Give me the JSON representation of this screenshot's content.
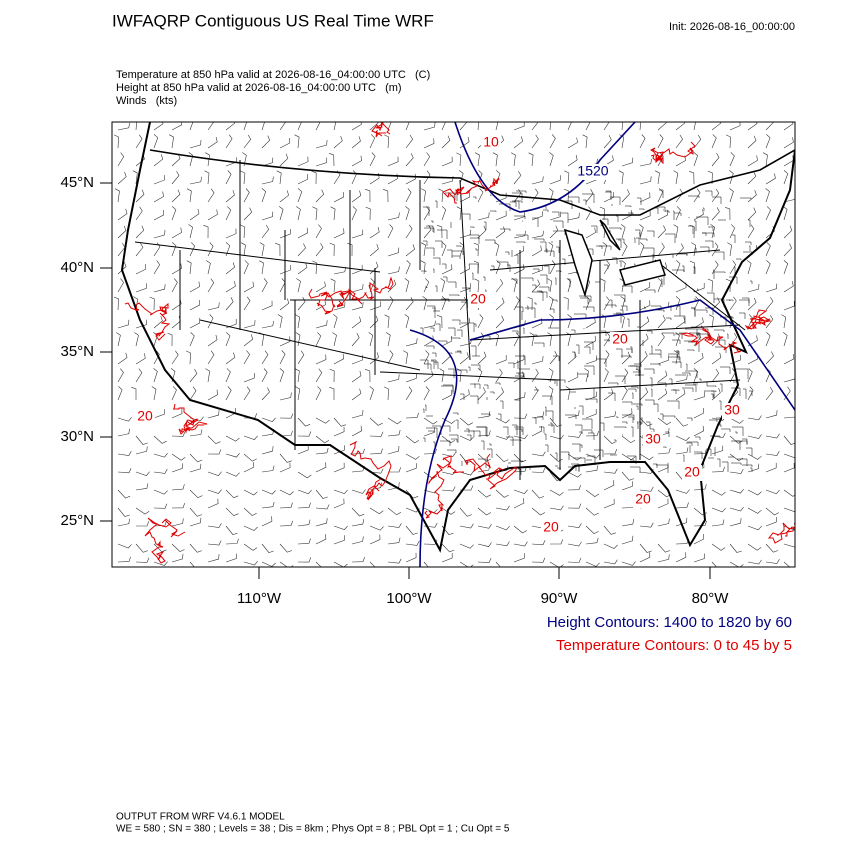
{
  "header": {
    "title": "IWFAQRP Contiguous US Real Time WRF",
    "init": "Init: 2026-08-16_00:00:00"
  },
  "fields": [
    "Temperature at 850 hPa valid at 2026-08-16_04:00:00 UTC   (C)",
    "Height at 850 hPa valid at 2026-08-16_04:00:00 UTC   (m)",
    "Winds   (kts)"
  ],
  "map": {
    "lat_labels": [
      "45°N",
      "40°N",
      "35°N",
      "30°N",
      "25°N"
    ],
    "lon_labels": [
      "110°W",
      "100°W",
      "90°W",
      "80°W"
    ],
    "height_contour_labels": [
      "1520"
    ],
    "temperature_contour_labels": [
      "10",
      "20",
      "20",
      "20",
      "30",
      "30",
      "20",
      "20",
      "20"
    ]
  },
  "legend": [
    "Height Contours: 1400 to 1820 by 60",
    "Temperature Contours: 0 to 45 by 5"
  ],
  "footer": [
    "OUTPUT FROM WRF V4.6.1 MODEL",
    "WE = 580 ; SN = 380 ; Levels = 38 ; Dis = 8km ; Phys Opt = 8 ; PBL Opt = 1 ; Cu Opt = 5"
  ]
}
